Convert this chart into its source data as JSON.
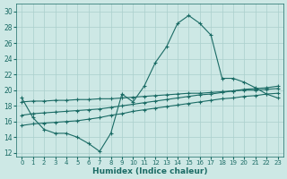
{
  "xlabel": "Humidex (Indice chaleur)",
  "xlim": [
    -0.5,
    23.5
  ],
  "ylim": [
    11.5,
    31
  ],
  "xticks": [
    0,
    1,
    2,
    3,
    4,
    5,
    6,
    7,
    8,
    9,
    10,
    11,
    12,
    13,
    14,
    15,
    16,
    17,
    18,
    19,
    20,
    21,
    22,
    23
  ],
  "yticks": [
    12,
    14,
    16,
    18,
    20,
    22,
    24,
    26,
    28,
    30
  ],
  "bg_color": "#cde8e5",
  "grid_color": "#aacfcc",
  "line_color": "#1a6b65",
  "line1_y": [
    19.0,
    16.5,
    15.0,
    14.5,
    14.5,
    14.0,
    13.2,
    12.2,
    14.5,
    19.5,
    18.5,
    20.5,
    23.5,
    25.5,
    28.5,
    29.5,
    28.5,
    27.0,
    21.5,
    21.5,
    21.0,
    20.3,
    19.5,
    19.0
  ],
  "line2_y": [
    15.5,
    15.7,
    15.8,
    15.9,
    16.0,
    16.1,
    16.3,
    16.5,
    16.8,
    17.0,
    17.3,
    17.5,
    17.7,
    17.9,
    18.1,
    18.3,
    18.5,
    18.7,
    18.9,
    19.0,
    19.2,
    19.3,
    19.5,
    19.6
  ],
  "line3_y": [
    16.8,
    17.0,
    17.1,
    17.2,
    17.3,
    17.4,
    17.5,
    17.6,
    17.8,
    18.0,
    18.2,
    18.4,
    18.6,
    18.8,
    19.0,
    19.2,
    19.4,
    19.5,
    19.7,
    19.9,
    20.1,
    20.2,
    20.3,
    20.5
  ],
  "line4_y": [
    18.5,
    18.6,
    18.6,
    18.7,
    18.7,
    18.8,
    18.8,
    18.9,
    18.9,
    19.0,
    19.1,
    19.2,
    19.3,
    19.4,
    19.5,
    19.6,
    19.6,
    19.7,
    19.8,
    19.9,
    20.0,
    20.0,
    20.1,
    20.2
  ]
}
